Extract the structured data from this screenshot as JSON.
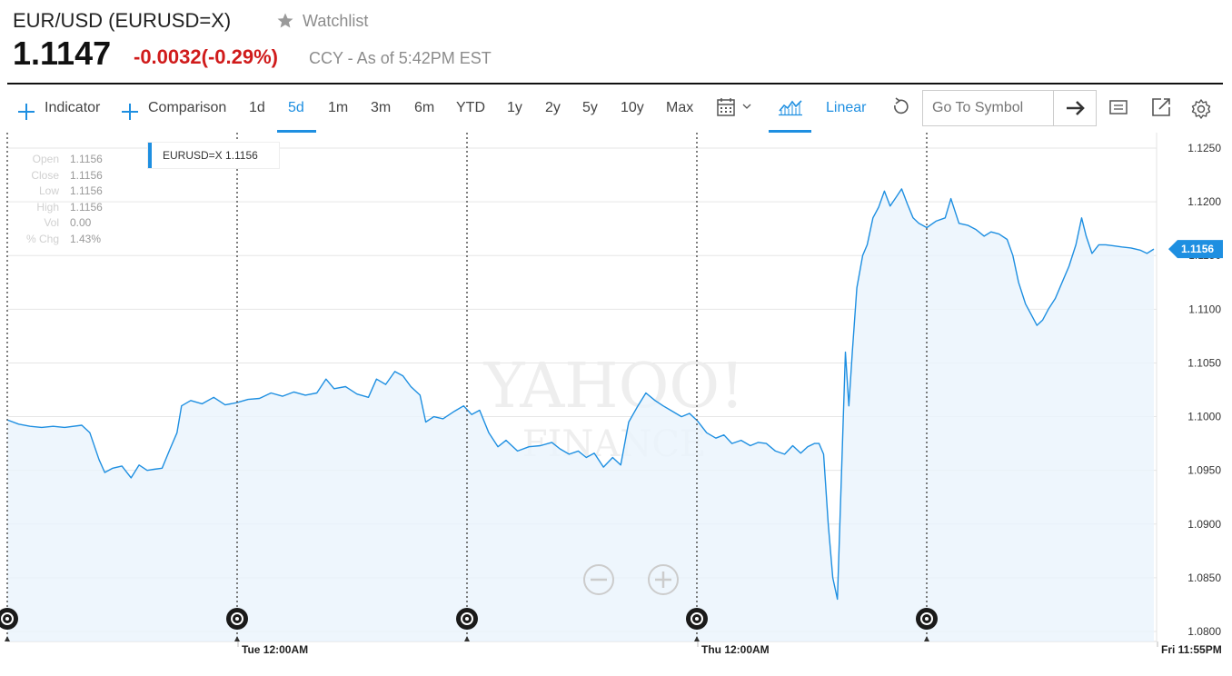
{
  "header": {
    "title": "EUR/USD (EURUSD=X)",
    "watchlist_label": "Watchlist",
    "price": "1.1147",
    "change": "-0.0032",
    "change_pct": "(-0.29%)",
    "currency_note": "CCY - As of 5:42PM EST"
  },
  "toolbar": {
    "indicator_label": "Indicator",
    "comparison_label": "Comparison",
    "ranges": [
      "1d",
      "5d",
      "1m",
      "3m",
      "6m",
      "YTD",
      "1y",
      "2y",
      "5y",
      "10y",
      "Max"
    ],
    "selected_range": "5d",
    "scale_label": "Linear",
    "search_placeholder": "Go To Symbol"
  },
  "tooltip": {
    "rows": [
      {
        "key": "Open",
        "value": "1.1156"
      },
      {
        "key": "Close",
        "value": "1.1156"
      },
      {
        "key": "Low",
        "value": "1.1156"
      },
      {
        "key": "High",
        "value": "1.1156"
      },
      {
        "key": "Vol",
        "value": "0.00"
      },
      {
        "key": "% Chg",
        "value": "1.43%"
      }
    ]
  },
  "legend": {
    "label": "EURUSD=X 1.1156"
  },
  "colors": {
    "accent": "#1e8fe1",
    "negative": "#d01b1b"
  },
  "chart_data": {
    "type": "area",
    "series": [
      {
        "name": "EURUSD=X"
      }
    ],
    "y_tick_labels": [
      "1.0800",
      "1.0850",
      "1.0900",
      "1.0950",
      "1.1000",
      "1.1050",
      "1.1100",
      "1.1150",
      "1.1200",
      "1.1250"
    ],
    "ylim": [
      1.08,
      1.125
    ],
    "x_tick_labels": [
      "Tue 12:00AM",
      "Thu 12:00AM",
      "Fri 11:55PM"
    ],
    "current_value_label": "1.1156",
    "points": [
      [
        0.0,
        1.0997
      ],
      [
        0.01,
        1.0993
      ],
      [
        0.02,
        1.0991
      ],
      [
        0.03,
        1.099
      ],
      [
        0.04,
        1.0991
      ],
      [
        0.05,
        1.099
      ],
      [
        0.065,
        1.0992
      ],
      [
        0.072,
        1.0985
      ],
      [
        0.08,
        1.096
      ],
      [
        0.085,
        1.0948
      ],
      [
        0.092,
        1.0952
      ],
      [
        0.1,
        1.0954
      ],
      [
        0.108,
        1.0943
      ],
      [
        0.115,
        1.0955
      ],
      [
        0.122,
        1.095
      ],
      [
        0.128,
        1.0951
      ],
      [
        0.135,
        1.0952
      ],
      [
        0.142,
        1.097
      ],
      [
        0.148,
        1.0985
      ],
      [
        0.152,
        1.101
      ],
      [
        0.16,
        1.1015
      ],
      [
        0.17,
        1.1012
      ],
      [
        0.18,
        1.1018
      ],
      [
        0.19,
        1.1011
      ],
      [
        0.2,
        1.1013
      ],
      [
        0.21,
        1.1016
      ],
      [
        0.22,
        1.1017
      ],
      [
        0.23,
        1.1022
      ],
      [
        0.24,
        1.1019
      ],
      [
        0.25,
        1.1023
      ],
      [
        0.26,
        1.102
      ],
      [
        0.27,
        1.1022
      ],
      [
        0.278,
        1.1035
      ],
      [
        0.285,
        1.1026
      ],
      [
        0.295,
        1.1028
      ],
      [
        0.305,
        1.1021
      ],
      [
        0.315,
        1.1018
      ],
      [
        0.322,
        1.1035
      ],
      [
        0.33,
        1.103
      ],
      [
        0.338,
        1.1042
      ],
      [
        0.345,
        1.1038
      ],
      [
        0.352,
        1.1028
      ],
      [
        0.36,
        1.102
      ],
      [
        0.365,
        1.0995
      ],
      [
        0.372,
        1.1
      ],
      [
        0.38,
        1.0998
      ],
      [
        0.39,
        1.1005
      ],
      [
        0.398,
        1.101
      ],
      [
        0.405,
        1.1002
      ],
      [
        0.412,
        1.1006
      ],
      [
        0.42,
        1.0985
      ],
      [
        0.428,
        1.0972
      ],
      [
        0.435,
        1.0978
      ],
      [
        0.445,
        1.0968
      ],
      [
        0.455,
        1.0972
      ],
      [
        0.465,
        1.0973
      ],
      [
        0.475,
        1.0976
      ],
      [
        0.482,
        1.097
      ],
      [
        0.49,
        1.0965
      ],
      [
        0.498,
        1.0968
      ],
      [
        0.505,
        1.0962
      ],
      [
        0.512,
        1.0966
      ],
      [
        0.52,
        1.0953
      ],
      [
        0.528,
        1.0962
      ],
      [
        0.535,
        1.0955
      ],
      [
        0.542,
        1.0995
      ],
      [
        0.55,
        1.101
      ],
      [
        0.557,
        1.1022
      ],
      [
        0.565,
        1.1015
      ],
      [
        0.572,
        1.101
      ],
      [
        0.58,
        1.1005
      ],
      [
        0.588,
        1.1
      ],
      [
        0.595,
        1.1003
      ],
      [
        0.602,
        1.0996
      ],
      [
        0.61,
        1.0985
      ],
      [
        0.618,
        1.098
      ],
      [
        0.625,
        1.0983
      ],
      [
        0.632,
        1.0975
      ],
      [
        0.64,
        1.0978
      ],
      [
        0.648,
        1.0973
      ],
      [
        0.655,
        1.0976
      ],
      [
        0.662,
        1.0975
      ],
      [
        0.67,
        1.0968
      ],
      [
        0.678,
        1.0965
      ],
      [
        0.685,
        1.0973
      ],
      [
        0.692,
        1.0966
      ],
      [
        0.698,
        1.0972
      ],
      [
        0.704,
        1.0975
      ],
      [
        0.708,
        1.0975
      ],
      [
        0.712,
        1.0965
      ],
      [
        0.716,
        1.09
      ],
      [
        0.72,
        1.085
      ],
      [
        0.724,
        1.083
      ],
      [
        0.728,
        1.096
      ],
      [
        0.731,
        1.106
      ],
      [
        0.734,
        1.101
      ],
      [
        0.737,
        1.106
      ],
      [
        0.741,
        1.112
      ],
      [
        0.746,
        1.115
      ],
      [
        0.75,
        1.116
      ],
      [
        0.755,
        1.1185
      ],
      [
        0.76,
        1.1195
      ],
      [
        0.765,
        1.121
      ],
      [
        0.77,
        1.1196
      ],
      [
        0.775,
        1.1204
      ],
      [
        0.78,
        1.1212
      ],
      [
        0.785,
        1.1198
      ],
      [
        0.79,
        1.1185
      ],
      [
        0.795,
        1.118
      ],
      [
        0.802,
        1.1176
      ],
      [
        0.81,
        1.1182
      ],
      [
        0.818,
        1.1185
      ],
      [
        0.823,
        1.1203
      ],
      [
        0.83,
        1.118
      ],
      [
        0.838,
        1.1178
      ],
      [
        0.845,
        1.1174
      ],
      [
        0.852,
        1.1168
      ],
      [
        0.858,
        1.1172
      ],
      [
        0.865,
        1.117
      ],
      [
        0.872,
        1.1165
      ],
      [
        0.877,
        1.115
      ],
      [
        0.882,
        1.1125
      ],
      [
        0.888,
        1.1105
      ],
      [
        0.893,
        1.1095
      ],
      [
        0.898,
        1.1085
      ],
      [
        0.903,
        1.109
      ],
      [
        0.908,
        1.11
      ],
      [
        0.914,
        1.111
      ],
      [
        0.92,
        1.1125
      ],
      [
        0.926,
        1.114
      ],
      [
        0.932,
        1.116
      ],
      [
        0.937,
        1.1185
      ],
      [
        0.941,
        1.1168
      ],
      [
        0.946,
        1.1152
      ],
      [
        0.952,
        1.116
      ],
      [
        0.958,
        1.116
      ],
      [
        0.965,
        1.1159
      ],
      [
        0.972,
        1.1158
      ],
      [
        0.98,
        1.1157
      ],
      [
        0.988,
        1.1155
      ],
      [
        0.994,
        1.1152
      ],
      [
        1.0,
        1.1156
      ]
    ]
  }
}
